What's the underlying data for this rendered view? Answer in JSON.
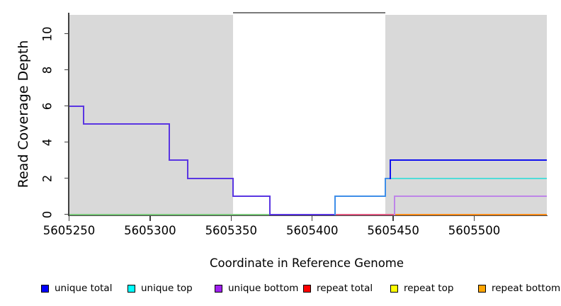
{
  "chart_data": {
    "type": "step-line",
    "title": "",
    "xlabel": "Coordinate in Reference Genome",
    "ylabel": "Read Coverage Depth",
    "xlim": [
      5605250,
      5605545
    ],
    "ylim": [
      0,
      11.2
    ],
    "x_ticks": [
      {
        "value": 5605250,
        "label": "5605250"
      },
      {
        "value": 5605300,
        "label": "5605300"
      },
      {
        "value": 5605350,
        "label": "5605350"
      },
      {
        "value": 5605400,
        "label": "5605400"
      },
      {
        "value": 5605450,
        "label": "5605450"
      },
      {
        "value": 5605500,
        "label": "5605500"
      }
    ],
    "y_ticks": [
      {
        "value": 0,
        "label": "0"
      },
      {
        "value": 2,
        "label": "2"
      },
      {
        "value": 4,
        "label": "4"
      },
      {
        "value": 6,
        "label": "6"
      },
      {
        "value": 8,
        "label": "8"
      },
      {
        "value": 10,
        "label": "10"
      }
    ],
    "grid": false,
    "shaded_regions": [
      {
        "start": 5605250,
        "end": 5605351,
        "color": "#D9D9D9"
      },
      {
        "start": 5605445,
        "end": 5605545,
        "color": "#D9D9D9"
      }
    ],
    "top_border_segment": {
      "start": 5605351,
      "end": 5605445
    },
    "series": [
      {
        "name": "unique total",
        "color": "#0000FF",
        "steps": [
          [
            5605250,
            6
          ],
          [
            5605259,
            5
          ],
          [
            5605312,
            3
          ],
          [
            5605323,
            2
          ],
          [
            5605351,
            1
          ],
          [
            5605374,
            0
          ],
          [
            5605414,
            1
          ],
          [
            5605445,
            2
          ],
          [
            5605448,
            3
          ]
        ],
        "end": 5605545
      },
      {
        "name": "unique top",
        "color": "#00FFFF",
        "steps": [
          [
            5605250,
            0
          ],
          [
            5605414,
            1
          ],
          [
            5605445,
            2
          ]
        ],
        "end": 5605545
      },
      {
        "name": "unique bottom",
        "color": "#A020F0",
        "steps": [
          [
            5605250,
            0
          ],
          [
            5605451,
            1
          ]
        ],
        "end": 5605545
      },
      {
        "name": "repeat total",
        "color": "#FF0000",
        "steps": [
          [
            5605414,
            0
          ]
        ],
        "end": 5605451
      },
      {
        "name": "repeat top",
        "color": "#FFFF00",
        "steps": [
          [
            5605250,
            0
          ]
        ],
        "end": 5605374
      },
      {
        "name": "repeat bottom",
        "color": "#FFA500",
        "steps": [
          [
            5605451,
            0
          ]
        ],
        "end": 5605545
      }
    ],
    "rendered_polylines": [
      {
        "name": "repeat-top-line-0",
        "color": "#E2DC6A",
        "h": 1.2,
        "dy": 1.6,
        "pts": [
          [
            5605250,
            0
          ],
          [
            5605374,
            0
          ]
        ]
      },
      {
        "name": "unique-top-line-0",
        "color": "#7CC87C",
        "pts": [
          [
            5605250,
            0
          ],
          [
            5605374,
            0
          ]
        ]
      },
      {
        "name": "repeat-total-line-0",
        "color": "#E05A82",
        "pts": [
          [
            5605414,
            0
          ],
          [
            5605451,
            0
          ]
        ]
      },
      {
        "name": "repeat-bottom-line-0",
        "color": "#FF8C1C",
        "pts": [
          [
            5605451,
            0
          ],
          [
            5605545,
            0
          ]
        ]
      },
      {
        "name": "unique-top-line-2",
        "color": "#50DCD8",
        "pts": [
          [
            5605445,
            2
          ],
          [
            5605545,
            2
          ]
        ]
      },
      {
        "name": "unique-bottom-line-1",
        "color": "#BE85E8",
        "pts": [
          [
            5605451,
            0
          ],
          [
            5605451,
            1
          ],
          [
            5605545,
            1
          ]
        ]
      },
      {
        "name": "unique-total-left-steps",
        "color": "#5A36E2",
        "pts": [
          [
            5605250,
            6
          ],
          [
            5605259,
            6
          ],
          [
            5605259,
            5
          ],
          [
            5605312,
            5
          ],
          [
            5605312,
            3
          ],
          [
            5605323,
            3
          ],
          [
            5605323,
            2
          ],
          [
            5605351,
            2
          ],
          [
            5605351,
            1
          ],
          [
            5605374,
            1
          ],
          [
            5605374,
            0
          ],
          [
            5605414,
            0
          ]
        ]
      },
      {
        "name": "unique-total-mid-steps",
        "color": "#3E8EE8",
        "pts": [
          [
            5605414,
            0
          ],
          [
            5605414,
            1
          ],
          [
            5605445,
            1
          ],
          [
            5605445,
            2
          ],
          [
            5605448,
            2
          ]
        ]
      },
      {
        "name": "unique-total-right-steps",
        "color": "#1212EE",
        "pts": [
          [
            5605448,
            2
          ],
          [
            5605448,
            3
          ],
          [
            5605545,
            3
          ]
        ]
      },
      {
        "name": "plot-top-border",
        "color": "#7A7A7A",
        "pts": [
          [
            5605351,
            11.15
          ],
          [
            5605445,
            11.15
          ]
        ]
      }
    ]
  },
  "legend": {
    "items": [
      {
        "label": "unique total",
        "color": "#0000FF"
      },
      {
        "label": "unique top",
        "color": "#00FFFF"
      },
      {
        "label": "unique bottom",
        "color": "#A020F0"
      },
      {
        "label": "repeat total",
        "color": "#FF0000"
      },
      {
        "label": "repeat top",
        "color": "#FFFF00"
      },
      {
        "label": "repeat bottom",
        "color": "#FFA500"
      }
    ]
  },
  "colors": {
    "background": "#FFFFFF",
    "shaded_region": "#D9D9D9",
    "axis": "#404040",
    "text": "#000000"
  }
}
